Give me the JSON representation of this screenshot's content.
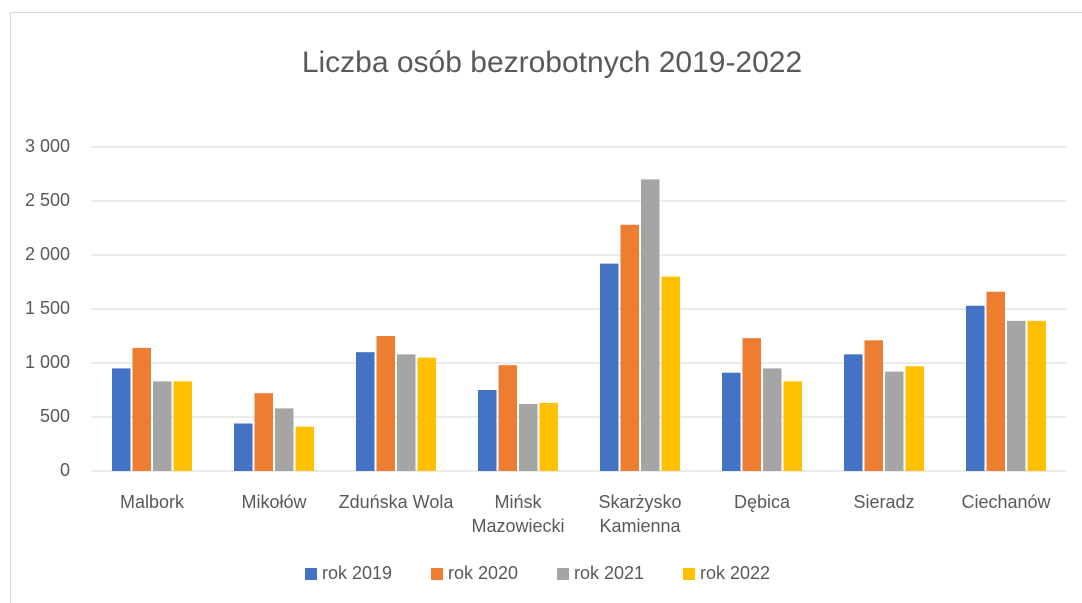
{
  "chart_data": {
    "type": "bar",
    "title": "Liczba osób bezrobotnych 2019-2022",
    "categories": [
      "Malbork",
      "Mikołów",
      "Zduńska Wola",
      "Mińsk Mazowiecki",
      "Skarżysko Kamienna",
      "Dębica",
      "Sieradz",
      "Ciechanów"
    ],
    "series": [
      {
        "name": "rok 2019",
        "color": "#4472c4",
        "values": [
          950,
          440,
          1100,
          750,
          1920,
          910,
          1080,
          1530
        ]
      },
      {
        "name": "rok 2020",
        "color": "#ed7d31",
        "values": [
          1140,
          720,
          1250,
          980,
          2280,
          1230,
          1210,
          1660
        ]
      },
      {
        "name": "rok 2021",
        "color": "#a5a5a5",
        "values": [
          830,
          580,
          1080,
          620,
          2700,
          950,
          920,
          1390
        ]
      },
      {
        "name": "rok 2022",
        "color": "#ffc000",
        "values": [
          830,
          410,
          1050,
          630,
          1800,
          830,
          970,
          1390
        ]
      }
    ],
    "ylim": [
      0,
      3000
    ],
    "yticks": [
      0,
      500,
      {
        "value": 1000,
        "label": "1 000"
      },
      {
        "value": 1500,
        "label": "1 500"
      },
      {
        "value": 2000,
        "label": "2 000"
      },
      {
        "value": 2500,
        "label": "2 500"
      },
      {
        "value": 3000,
        "label": "3 000"
      }
    ],
    "grid": true,
    "legend": "bottom"
  }
}
